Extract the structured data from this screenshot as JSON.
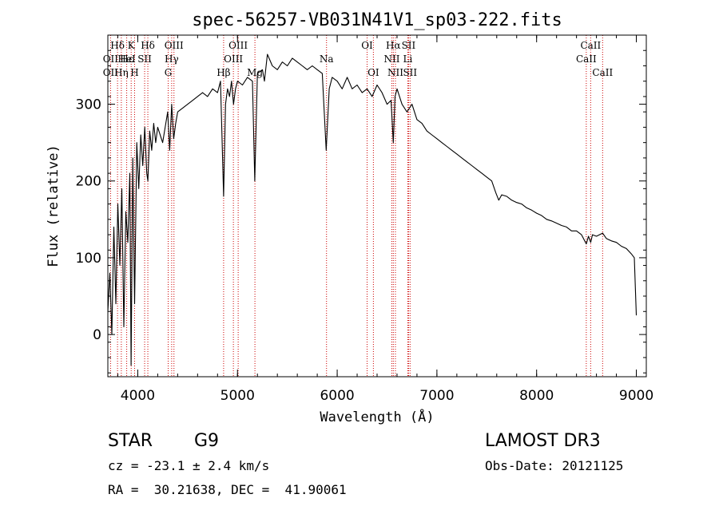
{
  "chart_data": {
    "type": "line",
    "title": "spec-56257-VB031N41V1_sp03-222.fits",
    "xlabel": "Wavelength (Å)",
    "ylabel": "Flux (relative)",
    "xlim": [
      3700,
      9100
    ],
    "ylim": [
      -55,
      390
    ],
    "xticks": [
      4000,
      5000,
      6000,
      7000,
      8000,
      9000
    ],
    "xtick_labels": [
      "4000",
      "5000",
      "6000",
      "7000",
      "8000",
      "9000"
    ],
    "yticks": [
      0,
      100,
      200,
      300
    ],
    "ytick_labels": [
      "0",
      "100",
      "200",
      "300"
    ],
    "series": [
      {
        "name": "flux",
        "x": [
          3700,
          3720,
          3740,
          3760,
          3780,
          3800,
          3820,
          3840,
          3860,
          3880,
          3900,
          3920,
          3933,
          3950,
          3968,
          3990,
          4010,
          4030,
          4050,
          4070,
          4090,
          4101,
          4120,
          4140,
          4160,
          4180,
          4200,
          4250,
          4300,
          4320,
          4340,
          4360,
          4380,
          4400,
          4450,
          4500,
          4550,
          4600,
          4650,
          4700,
          4750,
          4800,
          4830,
          4861,
          4880,
          4900,
          4920,
          4940,
          4960,
          4980,
          5000,
          5050,
          5100,
          5150,
          5173,
          5200,
          5250,
          5270,
          5300,
          5350,
          5400,
          5450,
          5500,
          5550,
          5600,
          5650,
          5700,
          5750,
          5800,
          5850,
          5890,
          5920,
          5950,
          6000,
          6050,
          6100,
          6150,
          6200,
          6250,
          6300,
          6350,
          6400,
          6450,
          6500,
          6540,
          6563,
          6580,
          6600,
          6650,
          6700,
          6750,
          6800,
          6850,
          6900,
          6950,
          7000,
          7050,
          7100,
          7150,
          7200,
          7250,
          7300,
          7350,
          7400,
          7450,
          7500,
          7550,
          7590,
          7620,
          7650,
          7700,
          7750,
          7800,
          7850,
          7900,
          7950,
          8000,
          8050,
          8100,
          8150,
          8200,
          8250,
          8300,
          8350,
          8400,
          8450,
          8498,
          8520,
          8542,
          8560,
          8600,
          8662,
          8700,
          8750,
          8800,
          8850,
          8900,
          8950,
          8980,
          9000
        ],
        "y": [
          30,
          80,
          0,
          140,
          40,
          170,
          90,
          190,
          10,
          160,
          120,
          210,
          -40,
          230,
          40,
          250,
          190,
          260,
          220,
          270,
          210,
          200,
          265,
          240,
          275,
          250,
          270,
          250,
          290,
          240,
          300,
          255,
          275,
          290,
          295,
          300,
          305,
          310,
          315,
          310,
          320,
          315,
          330,
          180,
          300,
          320,
          310,
          330,
          300,
          320,
          330,
          325,
          335,
          330,
          200,
          340,
          345,
          330,
          365,
          350,
          345,
          355,
          350,
          360,
          355,
          350,
          345,
          350,
          345,
          340,
          240,
          320,
          335,
          330,
          320,
          335,
          320,
          325,
          315,
          320,
          310,
          325,
          315,
          300,
          305,
          250,
          310,
          320,
          300,
          290,
          300,
          280,
          275,
          265,
          260,
          255,
          250,
          245,
          240,
          235,
          230,
          225,
          220,
          215,
          210,
          205,
          200,
          185,
          175,
          182,
          180,
          175,
          172,
          170,
          165,
          162,
          158,
          155,
          150,
          148,
          145,
          142,
          140,
          135,
          135,
          130,
          118,
          128,
          120,
          130,
          128,
          132,
          125,
          122,
          120,
          115,
          112,
          105,
          100,
          25
        ]
      }
    ],
    "line_annotations": [
      {
        "label": "Hδ",
        "x": 3797,
        "row": 1
      },
      {
        "label": "OII",
        "x": 3727,
        "row": 2
      },
      {
        "label": "OII",
        "x": 3727,
        "row": 3
      },
      {
        "label": "K",
        "x": 3934,
        "row": 1
      },
      {
        "label": "Hε",
        "x": 3889,
        "row": 2
      },
      {
        "label": "Hη",
        "x": 3835,
        "row": 3
      },
      {
        "label": "HeI",
        "x": 3889,
        "row": 2
      },
      {
        "label": "H",
        "x": 3968,
        "row": 3
      },
      {
        "label": "Hδ",
        "x": 4101,
        "row": 1
      },
      {
        "label": "SII",
        "x": 4069,
        "row": 2
      },
      {
        "label": "OIII",
        "x": 4363,
        "row": 1
      },
      {
        "label": "Hγ",
        "x": 4340,
        "row": 2
      },
      {
        "label": "G",
        "x": 4305,
        "row": 3
      },
      {
        "label": "OIII",
        "x": 5007,
        "row": 1
      },
      {
        "label": "OIII",
        "x": 4959,
        "row": 2
      },
      {
        "label": "Hβ",
        "x": 4861,
        "row": 3
      },
      {
        "label": "Mg",
        "x": 5175,
        "row": 3
      },
      {
        "label": "Na",
        "x": 5893,
        "row": 2
      },
      {
        "label": "OI",
        "x": 6300,
        "row": 1
      },
      {
        "label": "OI",
        "x": 6363,
        "row": 3
      },
      {
        "label": "Hα",
        "x": 6563,
        "row": 1
      },
      {
        "label": "SII",
        "x": 6716,
        "row": 1
      },
      {
        "label": "NII",
        "x": 6548,
        "row": 2
      },
      {
        "label": "Li",
        "x": 6708,
        "row": 2
      },
      {
        "label": "NII",
        "x": 6584,
        "row": 3
      },
      {
        "label": "SII",
        "x": 6731,
        "row": 3
      },
      {
        "label": "CaII",
        "x": 8542,
        "row": 1
      },
      {
        "label": "CaII",
        "x": 8498,
        "row": 2
      },
      {
        "label": "CaII",
        "x": 8662,
        "row": 3
      }
    ],
    "line_markers_x": [
      3727,
      3797,
      3835,
      3889,
      3934,
      3968,
      4069,
      4101,
      4305,
      4340,
      4363,
      4861,
      4959,
      5007,
      5175,
      5893,
      6300,
      6363,
      6548,
      6563,
      6584,
      6708,
      6716,
      6731,
      8498,
      8542,
      8662
    ],
    "colors": {
      "spectrum": "#000000",
      "markers": "#cc0000",
      "axes": "#000000"
    }
  },
  "info": {
    "class": "STAR",
    "subclass": "G9",
    "survey": "LAMOST DR3",
    "cz": "cz = -23.1 ± 2.4 km/s",
    "obs_date": "Obs-Date: 20121125",
    "coords": "RA =  30.21638, DEC =  41.90061"
  }
}
